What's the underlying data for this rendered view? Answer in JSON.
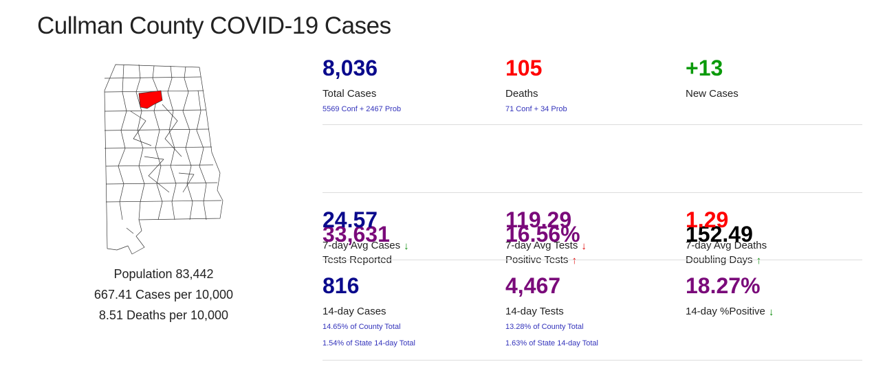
{
  "title": "Cullman County COVID-19 Cases",
  "highlight_color": "#ff0000",
  "population": {
    "line1": "Population 83,442",
    "line2": "667.41 Cases per 10,000",
    "line3": "8.51 Deaths per 10,000"
  },
  "colors": {
    "navy": "#0a0a8c",
    "red": "#ff0000",
    "green": "#0a9a0a",
    "purple": "#7a0a7a",
    "black": "#000000",
    "arrow_up_red": "#e00000",
    "arrow_up_green": "#0a8a0a",
    "arrow_down_green": "#0a8a0a",
    "arrow_down_red": "#e00000"
  },
  "stats": {
    "total_cases": {
      "value": "8,036",
      "label": "Total Cases",
      "sub1": "5569 Conf + 2467 Prob"
    },
    "deaths": {
      "value": "105",
      "label": "Deaths",
      "sub1": "71 Conf + 34 Prob"
    },
    "new_cases": {
      "value": "+13",
      "label": "New Cases"
    },
    "tests_reported": {
      "value": "33,631",
      "label": "Tests Reported"
    },
    "positive_tests": {
      "value": "16.56%",
      "label": "Positive Tests",
      "arrow": "up-arrow-icon"
    },
    "doubling_days": {
      "value": "152.49",
      "label": "Doubling Days",
      "arrow": "up-arrow-icon"
    },
    "avg_cases_7": {
      "value": "24.57",
      "label": "7-day Avg Cases",
      "arrow": "down-arrow-icon"
    },
    "avg_tests_7": {
      "value": "119.29",
      "label": "7-day Avg Tests",
      "arrow": "down-arrow-icon"
    },
    "avg_deaths_7": {
      "value": "1.29",
      "label": "7-day Avg Deaths"
    },
    "cases_14": {
      "value": "816",
      "label": "14-day Cases",
      "sub1": "14.65% of County Total",
      "sub2": "1.54% of State 14-day Total"
    },
    "tests_14": {
      "value": "4,467",
      "label": "14-day Tests",
      "sub1": "13.28% of County Total",
      "sub2": "1.63% of State 14-day Total"
    },
    "positive_14": {
      "value": "18.27%",
      "label": "14-day %Positive",
      "arrow": "down-arrow-icon"
    }
  }
}
